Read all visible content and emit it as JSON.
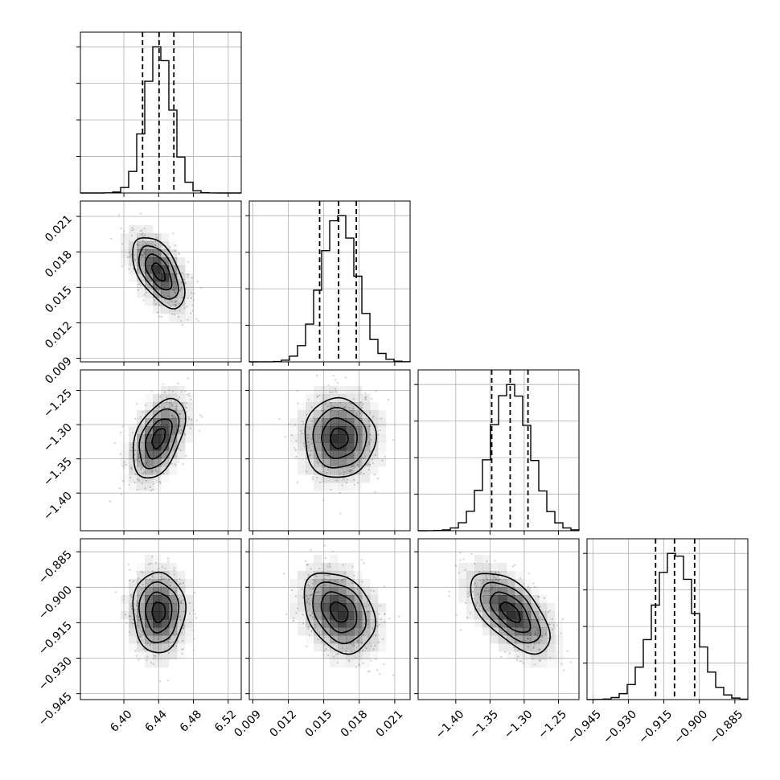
{
  "chart_data": {
    "type": "corner",
    "parameters": [
      {
        "index": 0,
        "mean": 6.44,
        "std": 0.015,
        "range": [
          6.35,
          6.535
        ],
        "q16": 6.4215,
        "q50": 6.4405,
        "q84": 6.4575,
        "ticks": [
          6.4,
          6.44,
          6.48,
          6.52
        ],
        "tick_labels": [
          "6.40",
          "6.44",
          "6.48",
          "6.52"
        ]
      },
      {
        "index": 1,
        "mean": 0.0163,
        "std": 0.0015,
        "range": [
          0.0087,
          0.0223
        ],
        "q16": 0.01465,
        "q50": 0.01625,
        "q84": 0.01775,
        "ticks": [
          0.009,
          0.012,
          0.015,
          0.018,
          0.021
        ],
        "tick_labels": [
          "0.009",
          "0.012",
          "0.015",
          "0.018",
          "0.021"
        ]
      },
      {
        "index": 2,
        "mean": -1.32,
        "std": 0.029,
        "range": [
          -1.455,
          -1.22
        ],
        "q16": -1.3475,
        "q50": -1.3205,
        "q84": -1.2945,
        "ticks": [
          -1.4,
          -1.35,
          -1.3,
          -1.25
        ],
        "tick_labels": [
          "−1.40",
          "−1.35",
          "−1.30",
          "−1.25"
        ]
      },
      {
        "index": 3,
        "mean": -0.9105,
        "std": 0.0085,
        "range": [
          -0.9475,
          -0.8795
        ],
        "q16": -0.9185,
        "q50": -0.9105,
        "q84": -0.902,
        "ticks": [
          -0.945,
          -0.93,
          -0.915,
          -0.9,
          -0.885
        ],
        "tick_labels": [
          "−0.945",
          "−0.930",
          "−0.915",
          "−0.900",
          "−0.885"
        ]
      }
    ],
    "correlations": [
      {
        "pair": [
          0,
          1
        ],
        "rho": -0.55
      },
      {
        "pair": [
          0,
          2
        ],
        "rho": 0.45
      },
      {
        "pair": [
          0,
          3
        ],
        "rho": 0.0
      },
      {
        "pair": [
          1,
          2
        ],
        "rho": 0.0
      },
      {
        "pair": [
          1,
          3
        ],
        "rho": -0.3
      },
      {
        "pair": [
          2,
          3
        ],
        "rho": -0.6
      }
    ],
    "histogram_bins": 20,
    "contour_levels_sigma": [
      0.5,
      1.0,
      1.5,
      2.0
    ],
    "show_quantiles": [
      0.16,
      0.5,
      0.84
    ],
    "grid": true,
    "colors": {
      "contour": "#000000",
      "density": "#000000",
      "scatter": "#9a9a9a"
    }
  }
}
